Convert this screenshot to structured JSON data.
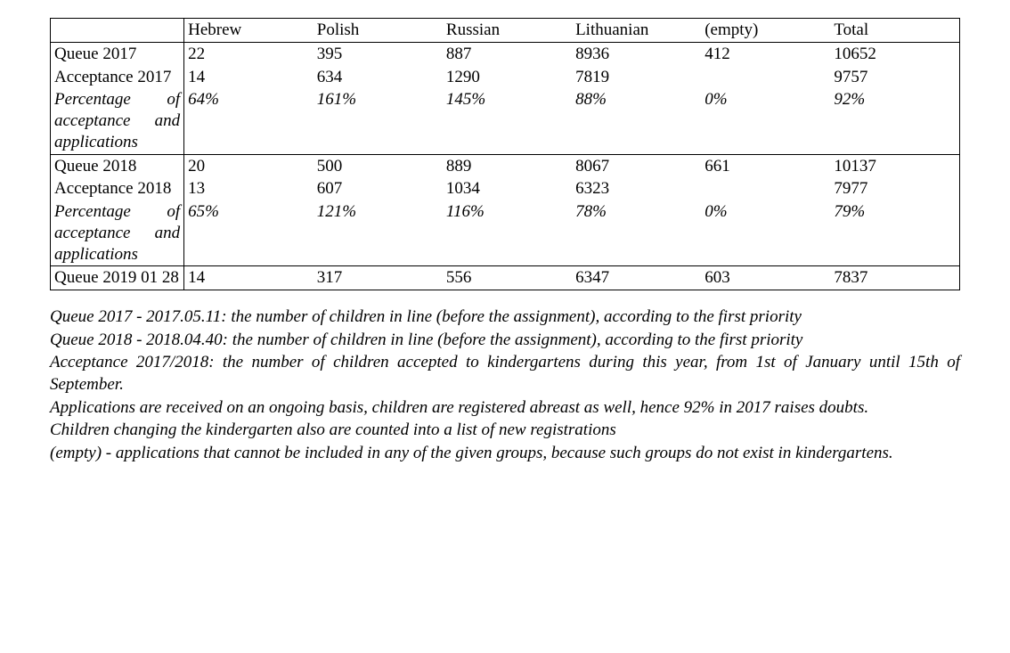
{
  "table": {
    "columns": [
      "Hebrew",
      "Polish",
      "Russian",
      "Lithuanian",
      "(empty)",
      "Total"
    ],
    "sections": [
      {
        "rows": [
          {
            "label": "Queue 2017",
            "italic": false,
            "values": [
              "22",
              "395",
              "887",
              "8936",
              "412",
              "10652"
            ]
          },
          {
            "label": "Acceptance 2017",
            "italic": false,
            "values": [
              "14",
              "634",
              "1290",
              "7819",
              "",
              "9757"
            ]
          },
          {
            "label": "Percentage of acceptance and applications",
            "italic": true,
            "values": [
              "64%",
              "161%",
              "145%",
              "88%",
              "0%",
              "92%"
            ]
          }
        ]
      },
      {
        "rows": [
          {
            "label": "Queue 2018",
            "italic": false,
            "values": [
              "20",
              "500",
              "889",
              "8067",
              "661",
              "10137"
            ]
          },
          {
            "label": "Acceptance 2018",
            "italic": false,
            "values": [
              "13",
              "607",
              "1034",
              "6323",
              "",
              "7977"
            ]
          },
          {
            "label": "Percentage of acceptance and applications",
            "italic": true,
            "values": [
              "65%",
              "121%",
              "116%",
              "78%",
              "0%",
              "79%"
            ]
          }
        ]
      },
      {
        "rows": [
          {
            "label": "Queue 2019 01 28",
            "italic": false,
            "values": [
              "14",
              "317",
              "556",
              "6347",
              "603",
              "7837"
            ]
          }
        ]
      }
    ],
    "style": {
      "border_color": "#000000",
      "font_family": "Times New Roman",
      "font_size_pt": 14,
      "background_color": "#ffffff"
    }
  },
  "notes": [
    "Queue 2017 - 2017.05.11: the number of children in line (before the assignment), according to the first priority",
    "Queue 2018 - 2018.04.40: the number of children in line (before the assignment), according to the first priority",
    "Acceptance 2017/2018: the number of children accepted to kindergartens during this year, from 1st of January until 15th of September.",
    "Applications are received on an ongoing basis, children are registered abreast as well, hence 92% in 2017 raises doubts.",
    "Children changing the kindergarten also are counted into a list of new registrations",
    "(empty) - applications that cannot be included in any of the given groups, because such groups do not exist in kindergartens."
  ]
}
